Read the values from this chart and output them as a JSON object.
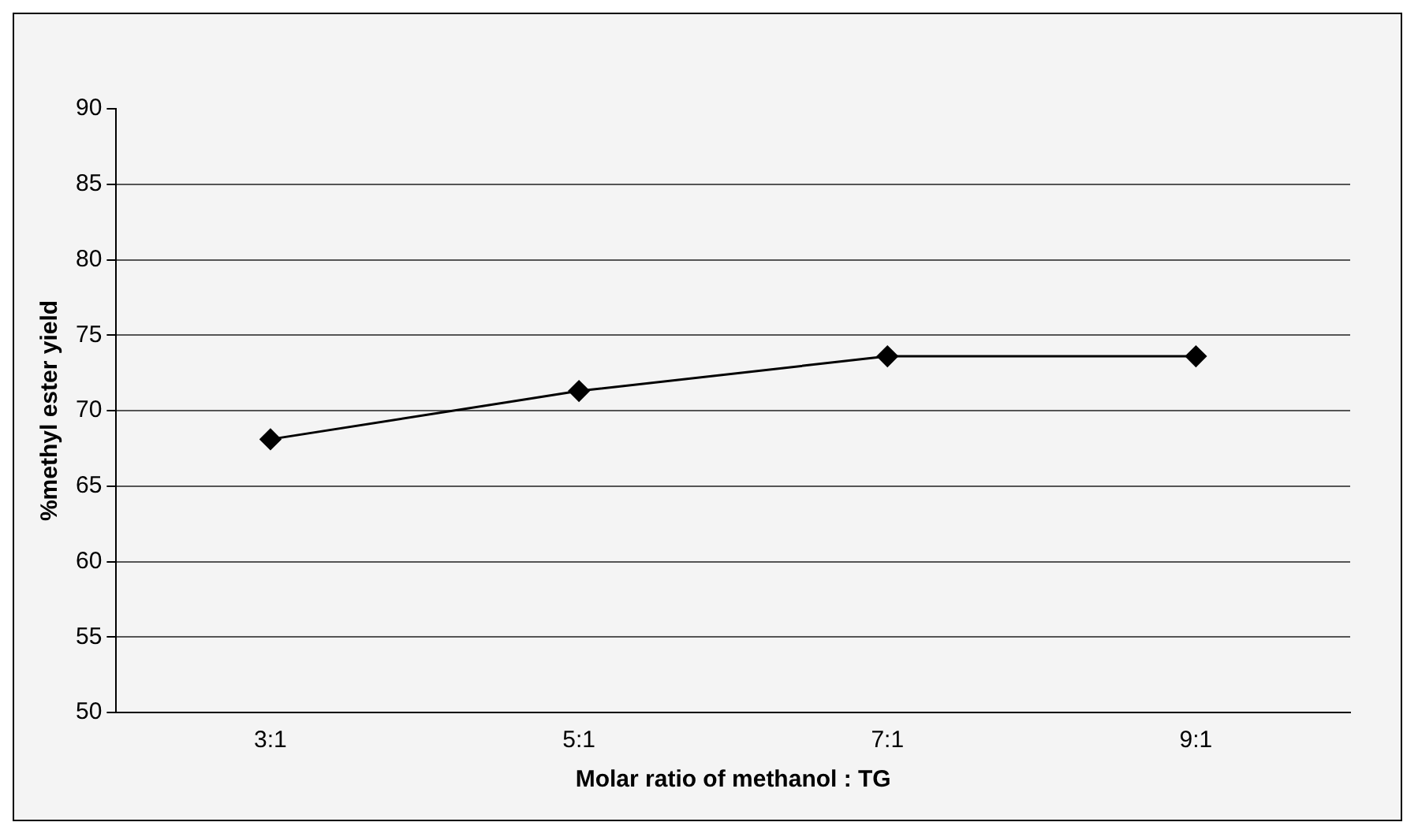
{
  "chart_data": {
    "type": "line",
    "xlabel": "Molar ratio of methanol : TG",
    "ylabel": "%methyl ester yield",
    "categories": [
      "3:1",
      "5:1",
      "7:1",
      "9:1"
    ],
    "series": [
      {
        "color": "#000000",
        "values": [
          68.1,
          71.3,
          73.6,
          73.6
        ]
      }
    ],
    "ylim": [
      50,
      90
    ],
    "yticks": [
      50,
      55,
      60,
      65,
      70,
      75,
      80,
      85,
      90
    ],
    "grid": "y",
    "marker": "diamond",
    "line_style": "solid",
    "legend": false
  }
}
